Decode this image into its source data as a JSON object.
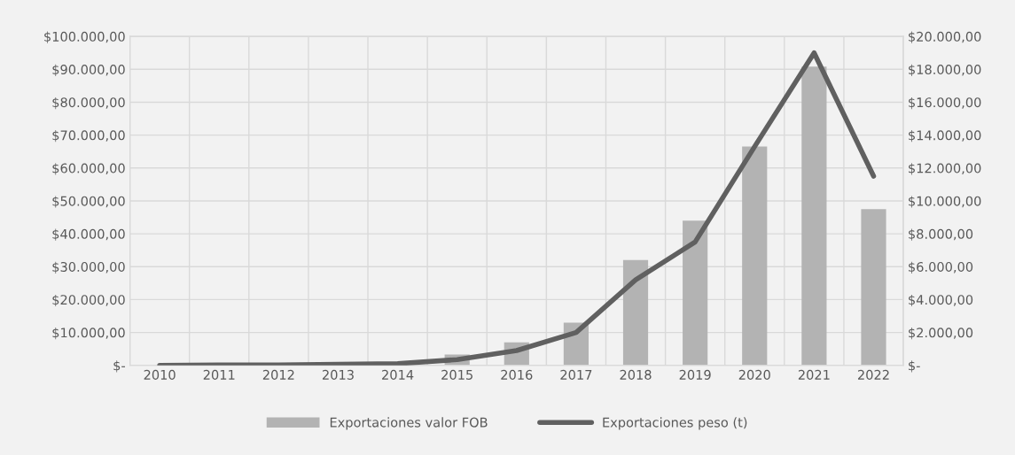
{
  "chart_data": {
    "type": "bar",
    "categories": [
      "2010",
      "2011",
      "2012",
      "2013",
      "2014",
      "2015",
      "2016",
      "2017",
      "2018",
      "2019",
      "2020",
      "2021",
      "2022"
    ],
    "series": [
      {
        "name": "Exportaciones valor FOB",
        "color": "#b3b3b3",
        "values": [
          0,
          0,
          0,
          0,
          0,
          3300,
          7000,
          13000,
          32000,
          44000,
          66500,
          90800,
          47500
        ]
      },
      {
        "name": "Exportaciones peso (t)",
        "type": "line",
        "axis": "y2",
        "color": "#606060",
        "values": [
          0,
          20,
          30,
          60,
          100,
          350,
          900,
          2000,
          5200,
          7500,
          13300,
          19000,
          11500
        ]
      }
    ],
    "ylim": [
      0,
      100000
    ],
    "yticks": [
      {
        "value": 0,
        "label": "$-"
      },
      {
        "value": 10000,
        "label": "$10.000,00"
      },
      {
        "value": 20000,
        "label": "$20.000,00"
      },
      {
        "value": 30000,
        "label": "$30.000,00"
      },
      {
        "value": 40000,
        "label": "$40.000,00"
      },
      {
        "value": 50000,
        "label": "$50.000,00"
      },
      {
        "value": 60000,
        "label": "$60.000,00"
      },
      {
        "value": 70000,
        "label": "$70.000,00"
      },
      {
        "value": 80000,
        "label": "$80.000,00"
      },
      {
        "value": 90000,
        "label": "$90.000,00"
      },
      {
        "value": 100000,
        "label": "$100.000,00"
      }
    ],
    "y2lim": [
      0,
      20000
    ],
    "y2ticks": [
      {
        "value": 0,
        "label": "$-"
      },
      {
        "value": 2000,
        "label": "$2.000,00"
      },
      {
        "value": 4000,
        "label": "$4.000,00"
      },
      {
        "value": 6000,
        "label": "$6.000,00"
      },
      {
        "value": 8000,
        "label": "$8.000,00"
      },
      {
        "value": 10000,
        "label": "$10.000,00"
      },
      {
        "value": 12000,
        "label": "$12.000,00"
      },
      {
        "value": 14000,
        "label": "$14.000,00"
      },
      {
        "value": 16000,
        "label": "$16.000,00"
      },
      {
        "value": 18000,
        "label": "$18.000,00"
      },
      {
        "value": 20000,
        "label": "$20.000,00"
      }
    ],
    "grid": true,
    "legend": "bottom",
    "marker": "none",
    "line_style": "solid"
  }
}
